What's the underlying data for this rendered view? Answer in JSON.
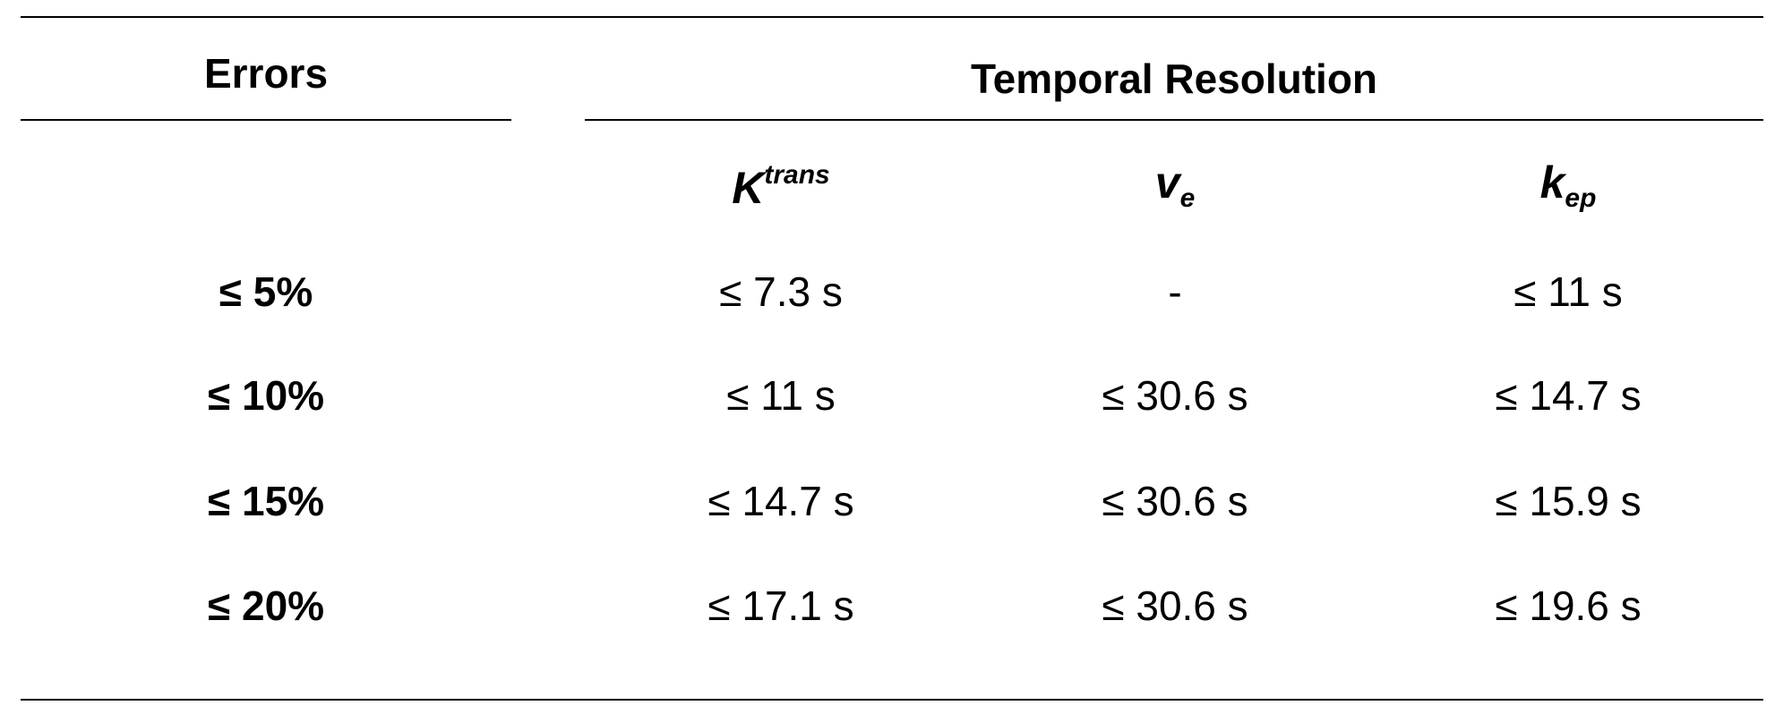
{
  "header": {
    "errors": "Errors",
    "group": "Temporal Resolution"
  },
  "columns": [
    {
      "base": "K",
      "sup": "trans"
    },
    {
      "base": "v",
      "sub": "e"
    },
    {
      "base": "k",
      "sub": "ep"
    }
  ],
  "rows": [
    {
      "label": "≤ 5%",
      "cells": [
        "≤ 7.3 s",
        "-",
        "≤ 11 s"
      ]
    },
    {
      "label": "≤ 10%",
      "cells": [
        "≤ 11 s",
        "≤ 30.6 s",
        "≤ 14.7 s"
      ]
    },
    {
      "label": "≤ 15%",
      "cells": [
        "≤ 14.7 s",
        "≤ 30.6 s",
        "≤ 15.9 s"
      ]
    },
    {
      "label": "≤ 20%",
      "cells": [
        "≤ 17.1 s",
        "≤ 30.6 s",
        "≤ 19.6 s"
      ]
    }
  ]
}
